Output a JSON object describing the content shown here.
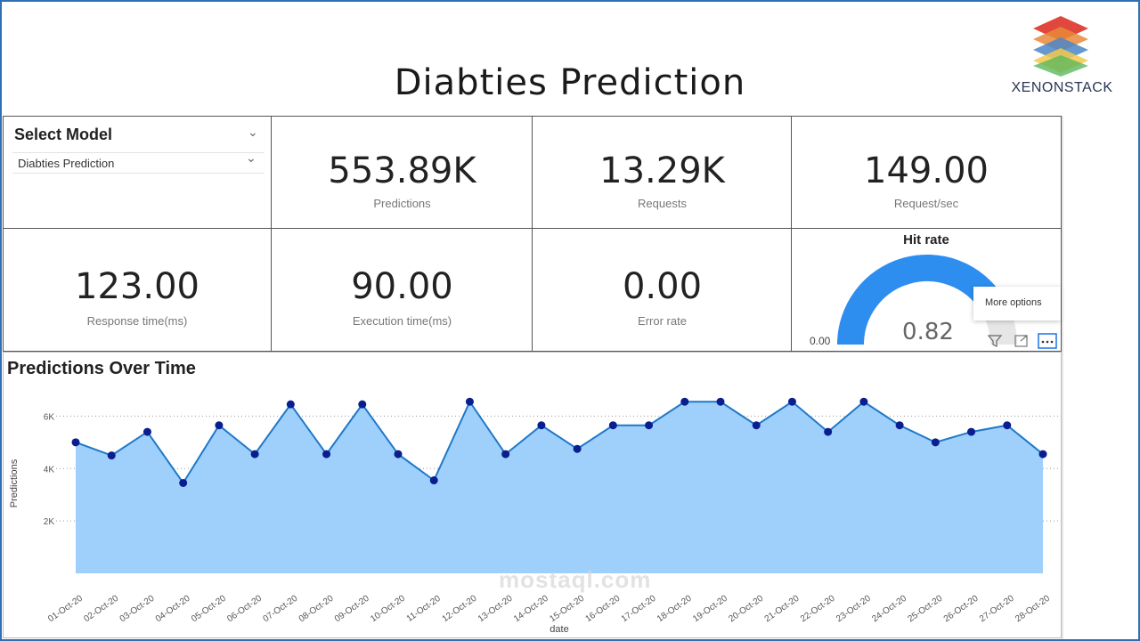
{
  "report": {
    "title": "Diabties Prediction"
  },
  "brand": {
    "name": "XENONSTACK",
    "layer_colors": [
      "#e0483e",
      "#e88a3a",
      "#4a86c8",
      "#f2c94c",
      "#5cb85c"
    ]
  },
  "slicer": {
    "title": "Select Model",
    "value": "Diabties Prediction"
  },
  "kpis": {
    "predictions": {
      "value": "553.89K",
      "label": "Predictions"
    },
    "requests": {
      "value": "13.29K",
      "label": "Requests"
    },
    "request_rate": {
      "value": "149.00",
      "label": "Request/sec"
    },
    "response_time": {
      "value": "123.00",
      "label": "Response time(ms)"
    },
    "execution_time": {
      "value": "90.00",
      "label": "Execution time(ms)"
    },
    "error_rate": {
      "value": "0.00",
      "label": "Error rate"
    }
  },
  "gauge": {
    "title": "Hit rate",
    "value": "0.82",
    "min_label": "0.00",
    "fraction": 0.82,
    "color": "#2d8ef0"
  },
  "tooltip": {
    "label": "More options"
  },
  "visual_header": {
    "filter_icon": "filter-icon",
    "focus_icon": "focus-mode-icon",
    "more_icon": "more-options-icon"
  },
  "chart_data": {
    "type": "area",
    "title": "Predictions Over Time",
    "xlabel": "date",
    "ylabel": "Predictions",
    "y_ticks": [
      "2K",
      "4K",
      "6K"
    ],
    "y_tick_values": [
      2000,
      4000,
      6000
    ],
    "ylim": [
      0,
      7000
    ],
    "grid": true,
    "line_color": "#1f78c8",
    "fill_color": "#9fd0fb",
    "marker_color": "#0a1f8f",
    "categories": [
      "01-Oct-20",
      "02-Oct-20",
      "03-Oct-20",
      "04-Oct-20",
      "05-Oct-20",
      "06-Oct-20",
      "07-Oct-20",
      "08-Oct-20",
      "09-Oct-20",
      "10-Oct-20",
      "11-Oct-20",
      "12-Oct-20",
      "13-Oct-20",
      "14-Oct-20",
      "15-Oct-20",
      "16-Oct-20",
      "17-Oct-20",
      "18-Oct-20",
      "19-Oct-20",
      "20-Oct-20",
      "21-Oct-20",
      "22-Oct-20",
      "23-Oct-20",
      "24-Oct-20",
      "25-Oct-20",
      "26-Oct-20",
      "27-Oct-20",
      "28-Oct-20"
    ],
    "values": [
      5000,
      4500,
      5400,
      3450,
      5650,
      4550,
      6450,
      4550,
      6450,
      4550,
      3550,
      6550,
      4550,
      5650,
      4750,
      5650,
      5650,
      6550,
      6550,
      5650,
      6550,
      5400,
      6550,
      5650,
      5000,
      5400,
      5650,
      4550
    ]
  },
  "watermark": {
    "text": "mostaql.com"
  }
}
